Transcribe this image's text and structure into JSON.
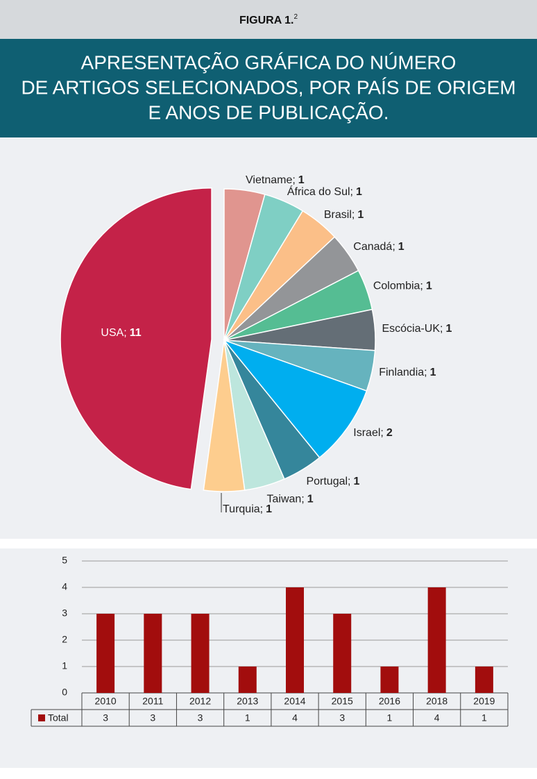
{
  "header": {
    "label": "FIGURA 1.",
    "sup": "2"
  },
  "title": [
    "APRESENTAÇÃO GRÁFICA DO NÚMERO",
    "DE ARTIGOS SELECIONADOS, POR PAÍS DE ORIGEM",
    "E ANOS DE PUBLICAÇÃO."
  ],
  "chart_data": [
    {
      "type": "pie",
      "categories": [
        "Vietname;",
        "África do Sul;",
        "Brasil;",
        "Canadá;",
        "Colombia;",
        "Escócia-UK;",
        "Finlandia;",
        "Israel;",
        "Portugal;",
        "Taiwan;",
        "Turquia;",
        "USA;"
      ],
      "values": [
        1,
        1,
        1,
        1,
        1,
        1,
        1,
        2,
        1,
        1,
        1,
        11
      ],
      "colors": [
        "#e0958f",
        "#7fcfc4",
        "#fbbf88",
        "#939598",
        "#55bd93",
        "#646e76",
        "#66b3be",
        "#00aeef",
        "#35869b",
        "#bde6dd",
        "#fdcd8e",
        "#c42248"
      ]
    },
    {
      "type": "bar",
      "categories": [
        "2010",
        "2011",
        "2012",
        "2013",
        "2014",
        "2015",
        "2016",
        "2018",
        "2019"
      ],
      "series": [
        {
          "name": "Total",
          "color": "#a20d0d",
          "values": [
            3,
            3,
            3,
            1,
            4,
            3,
            1,
            4,
            1
          ]
        }
      ],
      "ylim": [
        0,
        5
      ],
      "yticks": [
        0,
        1,
        2,
        3,
        4,
        5
      ],
      "grid": true,
      "data_table": true
    }
  ]
}
